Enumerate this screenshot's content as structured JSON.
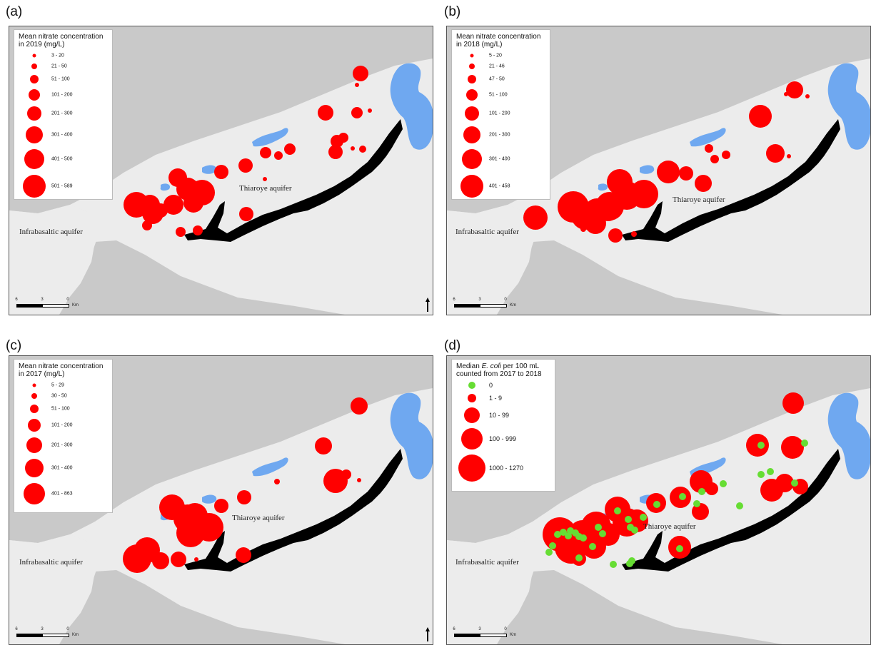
{
  "panels": [
    {
      "label": "(a)",
      "legend": {
        "title_line1": "Mean nitrate concentration",
        "title_line2": "in 2019 (mg/L)",
        "classes": [
          "3 - 20",
          "21 - 50",
          "51 - 100",
          "101 - 200",
          "201 - 300",
          "301 - 400",
          "401 - 500",
          "501 - 589"
        ]
      },
      "places": [
        "Infrabasaltic aquifer",
        "Thiaroye aquifer"
      ],
      "scale": {
        "ticks": [
          "6",
          "3",
          "0"
        ],
        "unit": "Km"
      }
    },
    {
      "label": "(b)",
      "legend": {
        "title_line1": "Mean nitrate concentration",
        "title_line2": "in 2018 (mg/L)",
        "classes": [
          "5 - 20",
          "21 - 46",
          "47 - 50",
          "51 - 100",
          "101 - 200",
          "201 - 300",
          "301 - 400",
          "401 - 458"
        ]
      },
      "places": [
        "Infrabasaltic aquifer",
        "Thiaroye aquifer"
      ],
      "scale": {
        "ticks": [
          "6",
          "3",
          "0"
        ],
        "unit": "Km"
      }
    },
    {
      "label": "(c)",
      "legend": {
        "title_line1": "Mean nitrate concentration",
        "title_line2": "in 2017 (mg/L)",
        "classes": [
          "5 - 29",
          "30 - 50",
          "51 - 100",
          "101 - 200",
          "201 - 300",
          "301 - 400",
          "401 - 863"
        ]
      },
      "places": [
        "Infrabasaltic aquifer",
        "Thiaroye aquifer"
      ],
      "scale": {
        "ticks": [
          "6",
          "3",
          "0"
        ],
        "unit": "Km"
      }
    },
    {
      "label": "(d)",
      "legend": {
        "title_line1_a": "Median ",
        "title_line1_b": "E. coli",
        "title_line1_c": " per 100 mL",
        "title_line2": "counted from 2017 to 2018",
        "classes": [
          "0",
          "1 - 9",
          "10 - 99",
          "100 - 999",
          "1000 - 1270"
        ]
      },
      "places": [
        "Infrabasaltic aquifer",
        "Thiaroye aquifer"
      ],
      "scale": {
        "ticks": [
          "6",
          "3",
          "0"
        ],
        "unit": "Km"
      }
    }
  ],
  "colors": {
    "sea": "#c9c9c9",
    "land": "#ececec",
    "lake": "#6fa8f0",
    "aquifer_outcrop": "#000000",
    "nitrate_symbol": "#ff0000",
    "ecoli_zero_symbol": "#66dd33"
  }
}
